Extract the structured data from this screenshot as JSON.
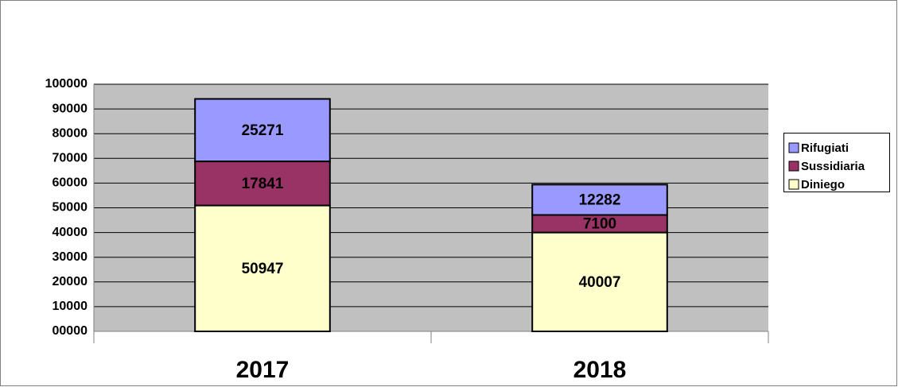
{
  "chart_data": {
    "type": "stacked_bar",
    "categories": [
      "2017",
      "2018"
    ],
    "series": [
      {
        "name": "Diniego",
        "color": "#ffffcc",
        "values": [
          50947,
          40007
        ]
      },
      {
        "name": "Sussidiaria",
        "color": "#993366",
        "values": [
          17841,
          7100
        ]
      },
      {
        "name": "Rifugiati",
        "color": "#9999ff",
        "values": [
          25271,
          12282
        ]
      }
    ],
    "ylim": [
      0,
      100000
    ],
    "yticks": [
      {
        "value": 0,
        "label": "00000"
      },
      10000,
      20000,
      30000,
      40000,
      50000,
      60000,
      70000,
      80000,
      90000,
      100000
    ],
    "grid": true,
    "legend": "right"
  }
}
